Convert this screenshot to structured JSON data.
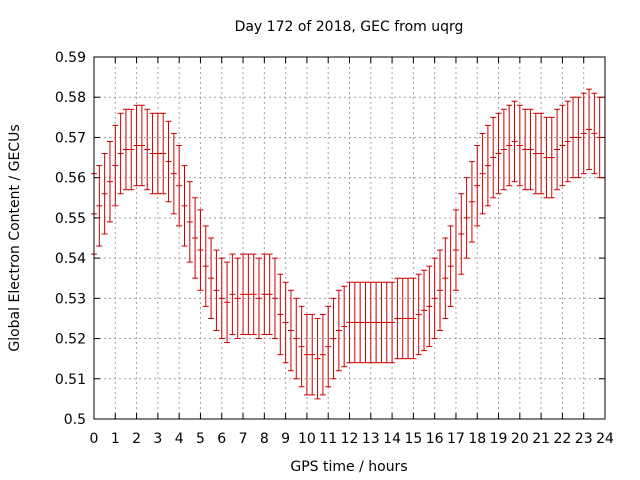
{
  "chart_data": {
    "type": "scatter",
    "title": "Day 172 of 2018, GEC from uqrg",
    "xlabel": "GPS time / hours",
    "ylabel": "Global Electron Content / GECUs",
    "xlim": [
      0,
      24
    ],
    "ylim": [
      0.5,
      0.59
    ],
    "xticks": [
      "0",
      "1",
      "2",
      "3",
      "4",
      "5",
      "6",
      "7",
      "8",
      "9",
      "10",
      "11",
      "12",
      "13",
      "14",
      "15",
      "16",
      "17",
      "18",
      "19",
      "20",
      "21",
      "22",
      "23",
      "24"
    ],
    "yticks": [
      "0.5",
      "0.51",
      "0.52",
      "0.53",
      "0.54",
      "0.55",
      "0.56",
      "0.57",
      "0.58",
      "0.59"
    ],
    "grid": true,
    "series": [
      {
        "color": "#cc0000",
        "error_half_width": 0.01,
        "x": [
          0.0,
          0.25,
          0.5,
          0.75,
          1.0,
          1.25,
          1.5,
          1.75,
          2.0,
          2.25,
          2.5,
          2.75,
          3.0,
          3.25,
          3.5,
          3.75,
          4.0,
          4.25,
          4.5,
          4.75,
          5.0,
          5.25,
          5.5,
          5.75,
          6.0,
          6.25,
          6.5,
          6.75,
          7.0,
          7.25,
          7.5,
          7.75,
          8.0,
          8.25,
          8.5,
          8.75,
          9.0,
          9.25,
          9.5,
          9.75,
          10.0,
          10.25,
          10.5,
          10.75,
          11.0,
          11.25,
          11.5,
          11.75,
          12.0,
          12.25,
          12.5,
          12.75,
          13.0,
          13.25,
          13.5,
          13.75,
          14.0,
          14.25,
          14.5,
          14.75,
          15.0,
          15.25,
          15.5,
          15.75,
          16.0,
          16.25,
          16.5,
          16.75,
          17.0,
          17.25,
          17.5,
          17.75,
          18.0,
          18.25,
          18.5,
          18.75,
          19.0,
          19.25,
          19.5,
          19.75,
          20.0,
          20.25,
          20.5,
          20.75,
          21.0,
          21.25,
          21.5,
          21.75,
          22.0,
          22.25,
          22.5,
          22.75,
          23.0,
          23.25,
          23.5,
          23.75
        ],
        "y": [
          0.551,
          0.553,
          0.556,
          0.559,
          0.563,
          0.566,
          0.567,
          0.567,
          0.568,
          0.568,
          0.567,
          0.566,
          0.566,
          0.566,
          0.564,
          0.561,
          0.558,
          0.553,
          0.549,
          0.545,
          0.542,
          0.538,
          0.535,
          0.532,
          0.53,
          0.529,
          0.531,
          0.53,
          0.531,
          0.531,
          0.531,
          0.53,
          0.531,
          0.531,
          0.53,
          0.526,
          0.524,
          0.522,
          0.52,
          0.518,
          0.516,
          0.516,
          0.515,
          0.516,
          0.518,
          0.52,
          0.522,
          0.523,
          0.524,
          0.524,
          0.524,
          0.524,
          0.524,
          0.524,
          0.524,
          0.524,
          0.524,
          0.525,
          0.525,
          0.525,
          0.525,
          0.526,
          0.527,
          0.528,
          0.53,
          0.532,
          0.535,
          0.538,
          0.542,
          0.546,
          0.55,
          0.554,
          0.558,
          0.561,
          0.563,
          0.565,
          0.566,
          0.567,
          0.568,
          0.569,
          0.568,
          0.567,
          0.567,
          0.566,
          0.566,
          0.565,
          0.565,
          0.567,
          0.568,
          0.569,
          0.57,
          0.57,
          0.571,
          0.572,
          0.571,
          0.57
        ]
      }
    ]
  }
}
